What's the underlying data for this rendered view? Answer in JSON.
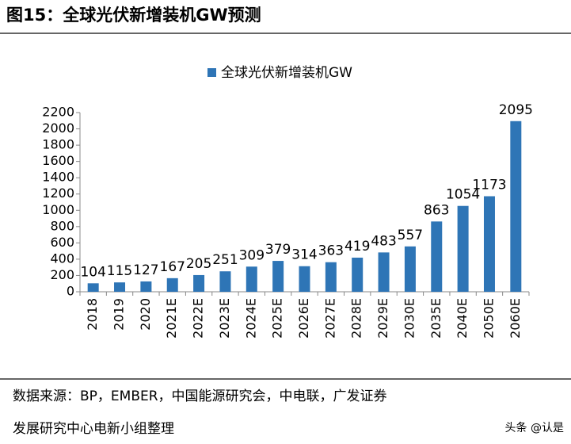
{
  "chart_data": {
    "type": "bar",
    "title": "图15：全球光伏新增装机GW预测",
    "categories": [
      "2018",
      "2019",
      "2020",
      "2021E",
      "2022E",
      "2023E",
      "2024E",
      "2025E",
      "2026E",
      "2027E",
      "2028E",
      "2029E",
      "2030E",
      "2035E",
      "2040E",
      "2050E",
      "2060E"
    ],
    "series": [
      {
        "name": "全球光伏新增装机GW",
        "color": "#2e75b6",
        "values": [
          104,
          115,
          127,
          167,
          205,
          251,
          309,
          379,
          314,
          363,
          419,
          483,
          557,
          863,
          1054,
          1173,
          2095
        ]
      }
    ],
    "ylim": [
      0,
      2200
    ],
    "yticks": [
      0,
      200,
      400,
      600,
      800,
      1000,
      1200,
      1400,
      1600,
      1800,
      2000,
      2200
    ],
    "grid": false,
    "legend": "top",
    "source": [
      "数据来源：BP，EMBER，中国能源研究会，中电联，广发证券",
      "发展研究中心电新小组整理"
    ],
    "watermark": "头条 @认是"
  }
}
